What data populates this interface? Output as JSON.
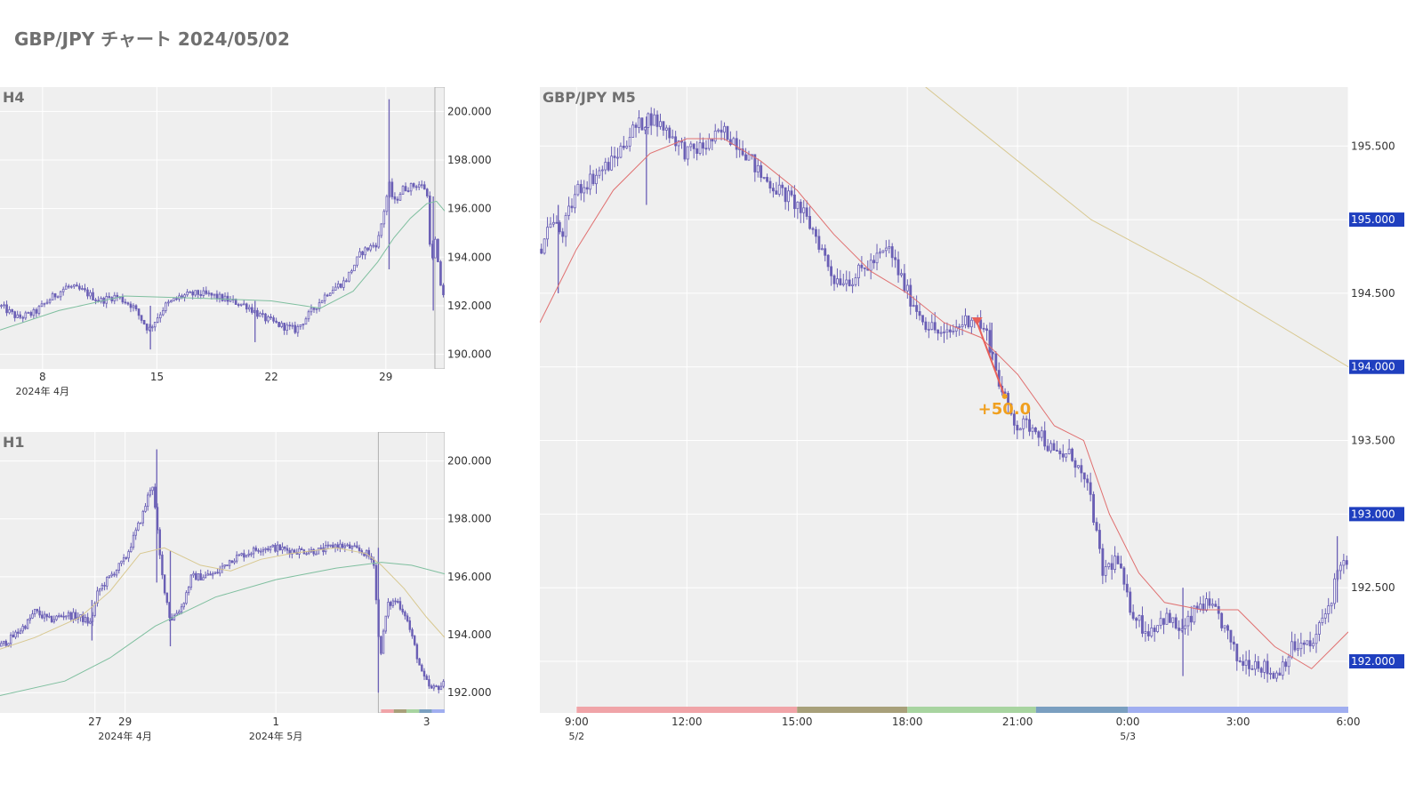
{
  "page": {
    "title": "GBP/JPY チャート 2024/05/02"
  },
  "colors": {
    "plot_bg": "#efefef",
    "grid": "#ffffff",
    "candle": "#6a5fb5",
    "axis_text": "#333333",
    "panel_label": "#707070",
    "price_badge_bg": "#1f3fbf",
    "price_badge_text": "#ffffff",
    "trade_arrow": "#e8605a",
    "trade_label": "#f0a020",
    "ma_short": "#e07070",
    "ma_mid": "#d8c890",
    "ma_long": "#7fbf9f",
    "highlight_box": "#b0b0b0"
  },
  "chart_data": [
    {
      "id": "h4",
      "type": "candlestick",
      "title": "H4",
      "ylim": [
        189.4,
        201.0
      ],
      "y_ticks": [
        "200.000",
        "198.000",
        "196.000",
        "194.000",
        "192.000",
        "190.000"
      ],
      "y_tick_values": [
        200,
        198,
        196,
        194,
        192,
        190
      ],
      "x_ticks": [
        {
          "label": "8",
          "sublabel": "2024年 4月"
        },
        {
          "label": "15",
          "sublabel": ""
        },
        {
          "label": "22",
          "sublabel": ""
        },
        {
          "label": "29",
          "sublabel": ""
        }
      ],
      "x_tick_pos": [
        8,
        15,
        22,
        29
      ],
      "xlim": [
        5.4,
        32.6
      ],
      "highlight_range": [
        32.0,
        32.6
      ],
      "close_path": [
        [
          5.4,
          192.0
        ],
        [
          6.5,
          191.5
        ],
        [
          7.5,
          191.7
        ],
        [
          8.5,
          192.3
        ],
        [
          9.5,
          192.8
        ],
        [
          10.5,
          192.6
        ],
        [
          11.5,
          192.2
        ],
        [
          12.5,
          192.4
        ],
        [
          13.5,
          192.0
        ],
        [
          14.5,
          191.0
        ],
        [
          15.5,
          192.0
        ],
        [
          16.5,
          192.4
        ],
        [
          17.5,
          192.5
        ],
        [
          18.5,
          192.4
        ],
        [
          19.5,
          192.2
        ],
        [
          20.5,
          192.0
        ],
        [
          21.5,
          191.5
        ],
        [
          22.5,
          191.2
        ],
        [
          23.5,
          191.0
        ],
        [
          24.5,
          191.8
        ],
        [
          25.5,
          192.6
        ],
        [
          26.5,
          193.0
        ],
        [
          27.5,
          194.2
        ],
        [
          28.5,
          194.6
        ],
        [
          29.2,
          197.0
        ],
        [
          29.5,
          196.2
        ],
        [
          30.0,
          196.8
        ],
        [
          30.5,
          196.9
        ],
        [
          31.0,
          197.0
        ],
        [
          31.5,
          196.8
        ],
        [
          31.8,
          193.5
        ],
        [
          32.0,
          194.8
        ],
        [
          32.3,
          193.0
        ],
        [
          32.6,
          192.3
        ]
      ],
      "spikes": [
        [
          29.2,
          200.5,
          193.5
        ],
        [
          14.6,
          190.2,
          192.0
        ],
        [
          21.0,
          190.5,
          192.2
        ],
        [
          31.9,
          191.8,
          196.5
        ]
      ],
      "ma_lines": [
        {
          "color_key": "ma_long",
          "points": [
            [
              5.4,
              191.0
            ],
            [
              9,
              191.8
            ],
            [
              13,
              192.4
            ],
            [
              18,
              192.3
            ],
            [
              22,
              192.2
            ],
            [
              25,
              191.9
            ],
            [
              27,
              192.6
            ],
            [
              28.5,
              193.8
            ],
            [
              29.5,
              194.8
            ],
            [
              30.5,
              195.6
            ],
            [
              31.5,
              196.2
            ],
            [
              32.1,
              196.3
            ],
            [
              32.6,
              195.9
            ]
          ]
        }
      ]
    },
    {
      "id": "h1",
      "type": "candlestick",
      "title": "H1",
      "ylim": [
        191.3,
        201.0
      ],
      "y_ticks": [
        "200.000",
        "198.000",
        "196.000",
        "194.000",
        "192.000"
      ],
      "y_tick_values": [
        200,
        198,
        196,
        194,
        192
      ],
      "x_ticks": [
        {
          "label": "27",
          "sublabel": ""
        },
        {
          "label": "29",
          "sublabel": "2024年 4月"
        },
        {
          "label": "1",
          "sublabel": "2024年 5月"
        },
        {
          "label": "3",
          "sublabel": ""
        }
      ],
      "x_tick_pos": [
        27,
        29,
        39,
        49
      ],
      "xlim": [
        20.7,
        50.2
      ],
      "highlight_range": [
        45.8,
        50.2
      ],
      "close_path": [
        [
          20.7,
          193.6
        ],
        [
          21.5,
          193.9
        ],
        [
          22.5,
          194.4
        ],
        [
          23.0,
          194.8
        ],
        [
          24.0,
          194.5
        ],
        [
          25.0,
          194.7
        ],
        [
          26.0,
          194.6
        ],
        [
          26.7,
          194.4
        ],
        [
          27.2,
          195.5
        ],
        [
          28.0,
          196.0
        ],
        [
          29.0,
          196.6
        ],
        [
          29.6,
          197.4
        ],
        [
          30.2,
          198.2
        ],
        [
          30.8,
          199.3
        ],
        [
          31.4,
          196.2
        ],
        [
          32.0,
          194.5
        ],
        [
          32.8,
          195.0
        ],
        [
          33.4,
          196.0
        ],
        [
          34.0,
          196.0
        ],
        [
          35.0,
          196.1
        ],
        [
          36.0,
          196.6
        ],
        [
          37.0,
          196.8
        ],
        [
          38.0,
          197.0
        ],
        [
          39.0,
          197.0
        ],
        [
          40.0,
          196.9
        ],
        [
          41.0,
          196.9
        ],
        [
          42.0,
          196.9
        ],
        [
          43.0,
          197.1
        ],
        [
          44.0,
          197.0
        ],
        [
          45.0,
          196.8
        ],
        [
          45.5,
          196.5
        ],
        [
          45.9,
          193.2
        ],
        [
          46.4,
          195.0
        ],
        [
          47.0,
          195.2
        ],
        [
          47.6,
          194.7
        ],
        [
          48.2,
          193.6
        ],
        [
          48.7,
          192.6
        ],
        [
          49.3,
          192.1
        ],
        [
          50.2,
          192.3
        ]
      ],
      "spikes": [
        [
          31.1,
          200.4,
          195.8
        ],
        [
          32.0,
          193.6,
          196.9
        ],
        [
          45.8,
          192.0,
          197.0
        ],
        [
          26.8,
          193.8,
          195.2
        ]
      ],
      "ma_lines": [
        {
          "color_key": "ma_mid",
          "points": [
            [
              20.7,
              193.5
            ],
            [
              23,
              193.9
            ],
            [
              26,
              194.6
            ],
            [
              28,
              195.5
            ],
            [
              30,
              196.8
            ],
            [
              31.6,
              197.0
            ],
            [
              34,
              196.4
            ],
            [
              36,
              196.2
            ],
            [
              38,
              196.6
            ],
            [
              40,
              196.8
            ],
            [
              43,
              197.0
            ],
            [
              45,
              196.8
            ],
            [
              46,
              196.4
            ],
            [
              47.5,
              195.6
            ],
            [
              49,
              194.6
            ],
            [
              50.2,
              193.9
            ]
          ]
        },
        {
          "color_key": "ma_long",
          "points": [
            [
              20.7,
              191.9
            ],
            [
              25,
              192.4
            ],
            [
              28,
              193.2
            ],
            [
              31,
              194.3
            ],
            [
              35,
              195.3
            ],
            [
              39,
              195.9
            ],
            [
              43,
              196.3
            ],
            [
              46,
              196.5
            ],
            [
              48,
              196.4
            ],
            [
              50.2,
              196.1
            ]
          ]
        }
      ]
    },
    {
      "id": "m5",
      "type": "candlestick",
      "title": "GBP/JPY M5",
      "ylim": [
        191.65,
        195.9
      ],
      "y_ticks": [
        "195.500",
        "194.500",
        "193.500",
        "192.500"
      ],
      "y_tick_values": [
        195.5,
        194.5,
        193.5,
        192.5
      ],
      "badge_levels": [
        "195.000",
        "194.000",
        "193.000",
        "192.000"
      ],
      "badge_values": [
        195.0,
        194.0,
        193.0,
        192.0
      ],
      "x_ticks": [
        {
          "label": "9:00",
          "sublabel": "5/2"
        },
        {
          "label": "12:00",
          "sublabel": ""
        },
        {
          "label": "15:00",
          "sublabel": ""
        },
        {
          "label": "18:00",
          "sublabel": ""
        },
        {
          "label": "21:00",
          "sublabel": ""
        },
        {
          "label": "0:00",
          "sublabel": "5/3"
        },
        {
          "label": "3:00",
          "sublabel": ""
        },
        {
          "label": "6:00",
          "sublabel": ""
        }
      ],
      "x_tick_pos": [
        9,
        12,
        15,
        18,
        21,
        24,
        27,
        30
      ],
      "xlim": [
        8.0,
        30.0
      ],
      "close_path": [
        [
          8.0,
          194.8
        ],
        [
          8.3,
          195.0
        ],
        [
          8.6,
          194.9
        ],
        [
          9.0,
          195.2
        ],
        [
          9.5,
          195.3
        ],
        [
          10.0,
          195.4
        ],
        [
          10.5,
          195.6
        ],
        [
          11.0,
          195.7
        ],
        [
          11.5,
          195.6
        ],
        [
          12.0,
          195.45
        ],
        [
          12.5,
          195.5
        ],
        [
          13.0,
          195.6
        ],
        [
          13.5,
          195.5
        ],
        [
          14.0,
          195.3
        ],
        [
          14.5,
          195.2
        ],
        [
          15.0,
          195.1
        ],
        [
          15.5,
          194.9
        ],
        [
          16.0,
          194.6
        ],
        [
          16.5,
          194.6
        ],
        [
          17.0,
          194.7
        ],
        [
          17.5,
          194.8
        ],
        [
          18.0,
          194.5
        ],
        [
          18.5,
          194.3
        ],
        [
          19.0,
          194.2
        ],
        [
          19.5,
          194.3
        ],
        [
          19.8,
          194.35
        ],
        [
          20.2,
          194.2
        ],
        [
          20.6,
          193.8
        ],
        [
          21.0,
          193.6
        ],
        [
          21.5,
          193.6
        ],
        [
          22.0,
          193.4
        ],
        [
          22.5,
          193.4
        ],
        [
          23.0,
          193.1
        ],
        [
          23.3,
          192.6
        ],
        [
          23.7,
          192.7
        ],
        [
          24.0,
          192.4
        ],
        [
          24.5,
          192.2
        ],
        [
          25.0,
          192.3
        ],
        [
          25.5,
          192.2
        ],
        [
          26.0,
          192.4
        ],
        [
          26.5,
          192.3
        ],
        [
          27.0,
          192.0
        ],
        [
          27.5,
          192.0
        ],
        [
          28.0,
          191.9
        ],
        [
          28.5,
          192.1
        ],
        [
          29.0,
          192.1
        ],
        [
          29.5,
          192.4
        ],
        [
          29.8,
          192.7
        ],
        [
          30.0,
          192.6
        ]
      ],
      "spikes": [
        [
          8.5,
          194.5,
          195.1
        ],
        [
          10.9,
          195.1,
          195.7
        ],
        [
          20.3,
          194.3,
          194.05
        ],
        [
          29.7,
          192.4,
          192.85
        ],
        [
          25.5,
          191.9,
          192.5
        ]
      ],
      "ma_lines": [
        {
          "color_key": "ma_short",
          "points": [
            [
              8.0,
              194.3
            ],
            [
              9.0,
              194.8
            ],
            [
              10.0,
              195.2
            ],
            [
              11.0,
              195.45
            ],
            [
              12.0,
              195.55
            ],
            [
              13.0,
              195.55
            ],
            [
              14.0,
              195.4
            ],
            [
              15.0,
              195.2
            ],
            [
              16.0,
              194.9
            ],
            [
              17.0,
              194.65
            ],
            [
              18.0,
              194.5
            ],
            [
              19.0,
              194.3
            ],
            [
              20.0,
              194.2
            ],
            [
              21.0,
              193.95
            ],
            [
              22.0,
              193.6
            ],
            [
              22.8,
              193.5
            ],
            [
              23.5,
              193.0
            ],
            [
              24.3,
              192.6
            ],
            [
              25.0,
              192.4
            ],
            [
              26.0,
              192.35
            ],
            [
              27.0,
              192.35
            ],
            [
              28.0,
              192.1
            ],
            [
              29.0,
              191.95
            ],
            [
              29.6,
              192.1
            ],
            [
              30.0,
              192.2
            ]
          ]
        },
        {
          "color_key": "ma_mid",
          "points": [
            [
              17.0,
              196.2
            ],
            [
              20.0,
              195.6
            ],
            [
              23.0,
              195.0
            ],
            [
              26.0,
              194.6
            ],
            [
              28.0,
              194.3
            ],
            [
              30.0,
              194.0
            ]
          ]
        }
      ],
      "session_bands": [
        {
          "from": 9.0,
          "to": 15.0,
          "color": "#f0a4a8"
        },
        {
          "from": 15.0,
          "to": 18.0,
          "color": "#a8a07a"
        },
        {
          "from": 18.0,
          "to": 21.5,
          "color": "#a8d4a0"
        },
        {
          "from": 21.5,
          "to": 24.0,
          "color": "#7a9fc0"
        },
        {
          "from": 24.0,
          "to": 30.0,
          "color": "#a0aef0"
        }
      ],
      "trade": {
        "entry": [
          19.9,
          194.3
        ],
        "exit": [
          20.65,
          193.8
        ],
        "label": "+50.0"
      }
    }
  ]
}
